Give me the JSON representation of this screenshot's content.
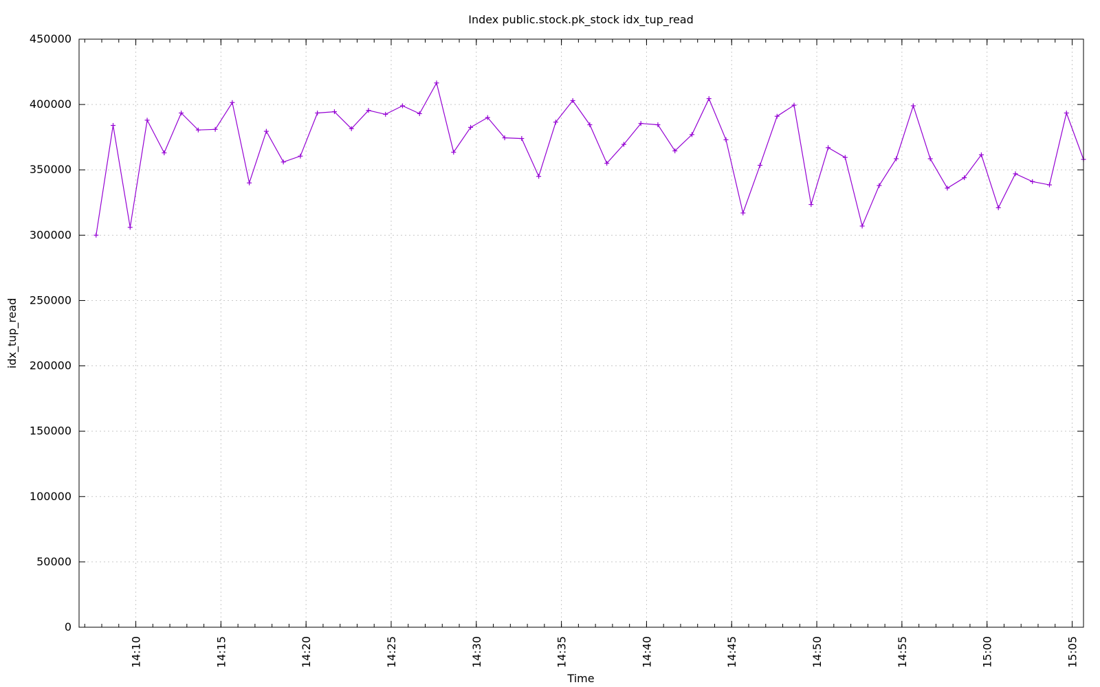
{
  "chart_data": {
    "type": "line",
    "title": "Index public.stock.pk_stock idx_tup_read",
    "xlabel": "Time",
    "ylabel": "idx_tup_read",
    "ylim": [
      0,
      450000
    ],
    "yticks": [
      "0",
      "50000",
      "100000",
      "150000",
      "200000",
      "250000",
      "300000",
      "350000",
      "400000",
      "450000"
    ],
    "xlim": [
      "14:06:40",
      "15:05:40"
    ],
    "xticks": [
      "14:10",
      "14:15",
      "14:20",
      "14:25",
      "14:30",
      "14:35",
      "14:40",
      "14:45",
      "14:50",
      "14:55",
      "15:00",
      "15:05"
    ],
    "grid": true,
    "marker": "+",
    "color": "#9400d3",
    "series": [
      {
        "x": [
          "14:07:40",
          "14:08:40",
          "14:09:40",
          "14:10:40",
          "14:11:40",
          "14:12:40",
          "14:13:40",
          "14:14:40",
          "14:15:40",
          "14:16:40",
          "14:17:40",
          "14:18:40",
          "14:19:40",
          "14:20:40",
          "14:21:40",
          "14:22:40",
          "14:23:40",
          "14:24:40",
          "14:25:40",
          "14:26:40",
          "14:27:40",
          "14:28:40",
          "14:29:40",
          "14:30:40",
          "14:31:40",
          "14:32:40",
          "14:33:40",
          "14:34:40",
          "14:35:40",
          "14:36:40",
          "14:37:40",
          "14:38:40",
          "14:39:40",
          "14:40:40",
          "14:41:40",
          "14:42:40",
          "14:43:40",
          "14:44:40",
          "14:45:40",
          "14:46:40",
          "14:47:40",
          "14:48:40",
          "14:49:40",
          "14:50:40",
          "14:51:40",
          "14:52:40",
          "14:53:40",
          "14:54:40",
          "14:55:40",
          "14:56:40",
          "14:57:40",
          "14:58:40",
          "14:59:40",
          "15:00:40",
          "15:01:40",
          "15:02:40",
          "15:03:40",
          "15:04:40",
          "15:05:40"
        ],
        "values": [
          300000,
          384000,
          306000,
          388000,
          363000,
          393500,
          380500,
          381000,
          401500,
          340000,
          379500,
          356000,
          360500,
          393500,
          394500,
          381500,
          395500,
          392500,
          399000,
          393000,
          416500,
          363500,
          382500,
          390000,
          374500,
          374000,
          345000,
          386500,
          403000,
          384500,
          355000,
          369500,
          385500,
          384500,
          364500,
          377000,
          404500,
          373000,
          317000,
          353500,
          391000,
          399500,
          323500,
          367000,
          359500,
          307000,
          338000,
          358500,
          399000,
          358500,
          336000,
          344000,
          361500,
          321000,
          347000,
          341000,
          338500,
          393500,
          358000
        ]
      }
    ]
  }
}
